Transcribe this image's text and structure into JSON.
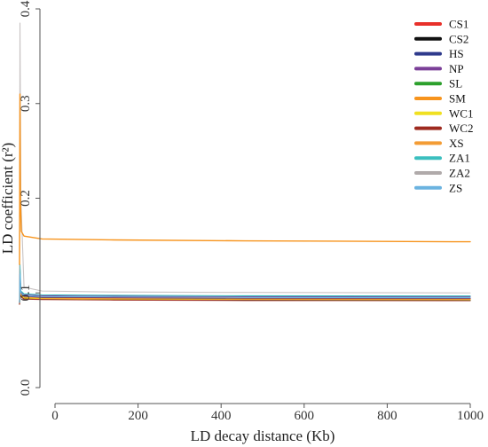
{
  "chart_data": {
    "type": "line",
    "title": "",
    "xlabel": "LD decay distance (Kb)",
    "ylabel": "LD coefficient (r²)",
    "xlim": [
      0,
      1000
    ],
    "ylim": [
      0,
      0.4
    ],
    "xticks": [
      "0",
      "200",
      "400",
      "600",
      "800",
      "1000"
    ],
    "yticks": [
      "0.0",
      "0.1",
      "0.2",
      "0.3",
      "0.4"
    ],
    "grid": false,
    "legend_position": "top-right",
    "series": [
      {
        "name": "CS1",
        "color": "#e8302a",
        "x": [
          0,
          1,
          3,
          10,
          50,
          200,
          500,
          1000
        ],
        "y": [
          0.09,
          0.12,
          0.1,
          0.097,
          0.0955,
          0.095,
          0.0945,
          0.0943
        ]
      },
      {
        "name": "CS2",
        "color": "#111111",
        "x": [
          0,
          1,
          3,
          10,
          50,
          200,
          500,
          1000
        ],
        "y": [
          0.088,
          0.11,
          0.097,
          0.094,
          0.0935,
          0.093,
          0.0925,
          0.0922
        ]
      },
      {
        "name": "HS",
        "color": "#2e3a8c",
        "x": [
          0,
          1,
          3,
          10,
          50,
          200,
          500,
          1000
        ],
        "y": [
          0.09,
          0.12,
          0.099,
          0.096,
          0.095,
          0.0945,
          0.094,
          0.0938
        ]
      },
      {
        "name": "NP",
        "color": "#7b3f98",
        "x": [
          0,
          1,
          3,
          10,
          50,
          200,
          500,
          1000
        ],
        "y": [
          0.09,
          0.125,
          0.101,
          0.098,
          0.097,
          0.0965,
          0.096,
          0.0958
        ]
      },
      {
        "name": "SL",
        "color": "#2ca02c",
        "x": [
          0,
          1,
          3,
          10,
          50,
          200,
          500,
          1000
        ],
        "y": [
          0.09,
          0.12,
          0.098,
          0.095,
          0.094,
          0.0935,
          0.093,
          0.0928
        ]
      },
      {
        "name": "SM",
        "color": "#f7941d",
        "x": [
          0,
          1,
          2,
          4,
          10,
          50,
          200,
          500,
          1000
        ],
        "y": [
          0.13,
          0.31,
          0.2,
          0.165,
          0.16,
          0.157,
          0.156,
          0.155,
          0.154
        ]
      },
      {
        "name": "WC1",
        "color": "#f0e020",
        "x": [
          0,
          1,
          3,
          10,
          50,
          200,
          500,
          1000
        ],
        "y": [
          0.088,
          0.11,
          0.097,
          0.0945,
          0.094,
          0.0935,
          0.0932,
          0.093
        ]
      },
      {
        "name": "WC2",
        "color": "#9e2a1f",
        "x": [
          0,
          1,
          3,
          10,
          50,
          200,
          500,
          1000
        ],
        "y": [
          0.088,
          0.11,
          0.096,
          0.0935,
          0.093,
          0.0925,
          0.092,
          0.0918
        ]
      },
      {
        "name": "XS",
        "color": "#f39c34",
        "x": [
          0,
          1,
          3,
          10,
          50,
          200,
          500,
          1000
        ],
        "y": [
          0.09,
          0.12,
          0.098,
          0.0955,
          0.0945,
          0.094,
          0.0935,
          0.0933
        ]
      },
      {
        "name": "ZA1",
        "color": "#3bbfbf",
        "x": [
          0,
          1,
          3,
          10,
          50,
          200,
          500,
          1000
        ],
        "y": [
          0.09,
          0.13,
          0.102,
          0.099,
          0.098,
          0.0975,
          0.097,
          0.0968
        ]
      },
      {
        "name": "ZA2",
        "color": "#b0aaaa",
        "x": [
          0,
          1,
          3,
          10,
          50,
          200,
          500,
          1000
        ],
        "y": [
          0.095,
          0.385,
          0.2,
          0.106,
          0.102,
          0.101,
          0.1005,
          0.1
        ]
      },
      {
        "name": "ZS",
        "color": "#6bb3e0",
        "x": [
          0,
          1,
          3,
          10,
          50,
          200,
          500,
          1000
        ],
        "y": [
          0.09,
          0.12,
          0.1,
          0.097,
          0.0962,
          0.0958,
          0.0953,
          0.095
        ]
      }
    ]
  }
}
